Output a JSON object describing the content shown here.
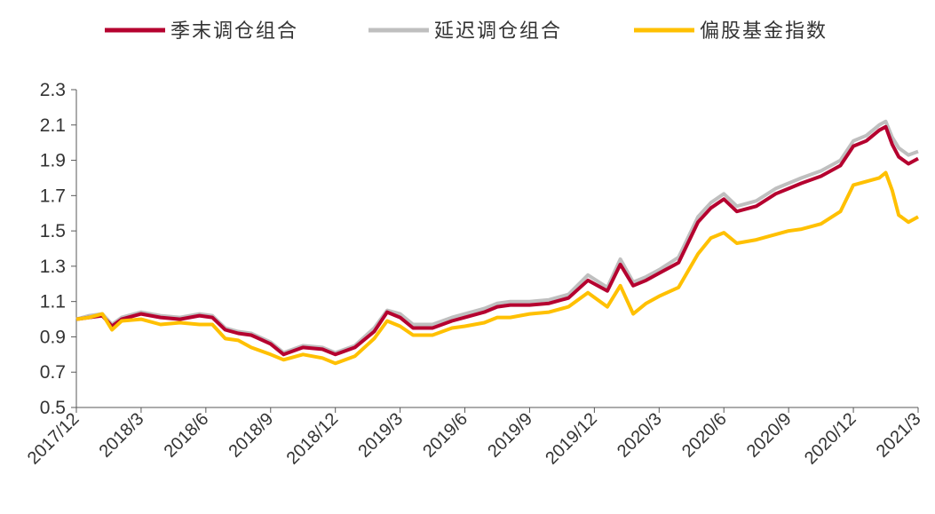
{
  "chart_data": {
    "type": "line",
    "title": "",
    "xlabel": "",
    "ylabel": "",
    "ylim": [
      0.5,
      2.3
    ],
    "yticks": [
      "0.5",
      "0.7",
      "0.9",
      "1.1",
      "1.3",
      "1.5",
      "1.7",
      "1.9",
      "2.1",
      "2.3"
    ],
    "xticks": [
      "2017/12",
      "2018/3",
      "2018/6",
      "2018/9",
      "2018/12",
      "2019/3",
      "2019/6",
      "2019/9",
      "2019/12",
      "2020/3",
      "2020/6",
      "2020/9",
      "2020/12",
      "2021/3"
    ],
    "x_range": [
      0,
      13
    ],
    "legend_position": "top",
    "series": [
      {
        "name": "延迟调仓组合",
        "color": "#bfbfbf",
        "x": [
          0,
          0.2,
          0.4,
          0.55,
          0.7,
          1.0,
          1.3,
          1.6,
          1.9,
          2.1,
          2.3,
          2.5,
          2.7,
          3.0,
          3.2,
          3.5,
          3.8,
          4.0,
          4.3,
          4.6,
          4.8,
          5.0,
          5.2,
          5.5,
          5.8,
          6.0,
          6.3,
          6.5,
          6.7,
          7.0,
          7.3,
          7.6,
          7.9,
          8.2,
          8.4,
          8.6,
          8.8,
          9.0,
          9.3,
          9.6,
          9.8,
          10.0,
          10.2,
          10.5,
          10.8,
          11.0,
          11.2,
          11.5,
          11.8,
          12.0,
          12.2,
          12.4,
          12.5,
          12.6,
          12.7,
          12.85,
          13.0
        ],
        "values": [
          1.0,
          1.02,
          1.03,
          0.97,
          1.01,
          1.04,
          1.02,
          1.01,
          1.03,
          1.02,
          0.95,
          0.93,
          0.92,
          0.87,
          0.81,
          0.85,
          0.84,
          0.81,
          0.85,
          0.95,
          1.05,
          1.03,
          0.97,
          0.97,
          1.01,
          1.03,
          1.06,
          1.09,
          1.1,
          1.1,
          1.11,
          1.14,
          1.25,
          1.18,
          1.34,
          1.21,
          1.24,
          1.28,
          1.35,
          1.58,
          1.66,
          1.71,
          1.64,
          1.67,
          1.74,
          1.77,
          1.8,
          1.84,
          1.9,
          2.01,
          2.04,
          2.1,
          2.12,
          2.03,
          1.97,
          1.93,
          1.95
        ]
      },
      {
        "name": "季末调仓组合",
        "color": "#b5002f",
        "x": [
          0,
          0.2,
          0.4,
          0.55,
          0.7,
          1.0,
          1.3,
          1.6,
          1.9,
          2.1,
          2.3,
          2.5,
          2.7,
          3.0,
          3.2,
          3.5,
          3.8,
          4.0,
          4.3,
          4.6,
          4.8,
          5.0,
          5.2,
          5.5,
          5.8,
          6.0,
          6.3,
          6.5,
          6.7,
          7.0,
          7.3,
          7.6,
          7.9,
          8.2,
          8.4,
          8.6,
          8.8,
          9.0,
          9.3,
          9.6,
          9.8,
          10.0,
          10.2,
          10.5,
          10.8,
          11.0,
          11.2,
          11.5,
          11.8,
          12.0,
          12.2,
          12.4,
          12.5,
          12.6,
          12.7,
          12.85,
          13.0
        ],
        "values": [
          1.0,
          1.01,
          1.02,
          0.96,
          1.0,
          1.03,
          1.01,
          1.0,
          1.02,
          1.01,
          0.94,
          0.92,
          0.91,
          0.86,
          0.8,
          0.84,
          0.83,
          0.8,
          0.84,
          0.93,
          1.04,
          1.01,
          0.95,
          0.95,
          0.99,
          1.01,
          1.04,
          1.07,
          1.08,
          1.08,
          1.09,
          1.12,
          1.22,
          1.16,
          1.31,
          1.19,
          1.22,
          1.26,
          1.32,
          1.55,
          1.63,
          1.68,
          1.61,
          1.64,
          1.71,
          1.74,
          1.77,
          1.81,
          1.87,
          1.98,
          2.01,
          2.07,
          2.09,
          1.99,
          1.92,
          1.88,
          1.91
        ]
      },
      {
        "name": "偏股基金指数",
        "color": "#ffc000",
        "x": [
          0,
          0.2,
          0.4,
          0.55,
          0.7,
          1.0,
          1.3,
          1.6,
          1.9,
          2.1,
          2.3,
          2.5,
          2.7,
          3.0,
          3.2,
          3.5,
          3.8,
          4.0,
          4.3,
          4.6,
          4.8,
          5.0,
          5.2,
          5.5,
          5.8,
          6.0,
          6.3,
          6.5,
          6.7,
          7.0,
          7.3,
          7.6,
          7.9,
          8.2,
          8.4,
          8.6,
          8.8,
          9.0,
          9.3,
          9.6,
          9.8,
          10.0,
          10.2,
          10.5,
          10.8,
          11.0,
          11.2,
          11.5,
          11.8,
          12.0,
          12.2,
          12.4,
          12.5,
          12.6,
          12.7,
          12.85,
          13.0
        ],
        "values": [
          1.0,
          1.01,
          1.03,
          0.94,
          0.99,
          1.0,
          0.97,
          0.98,
          0.97,
          0.97,
          0.89,
          0.88,
          0.84,
          0.8,
          0.77,
          0.8,
          0.78,
          0.75,
          0.79,
          0.89,
          0.99,
          0.96,
          0.91,
          0.91,
          0.95,
          0.96,
          0.98,
          1.01,
          1.01,
          1.03,
          1.04,
          1.07,
          1.15,
          1.07,
          1.19,
          1.03,
          1.09,
          1.13,
          1.18,
          1.37,
          1.46,
          1.49,
          1.43,
          1.45,
          1.48,
          1.5,
          1.51,
          1.54,
          1.61,
          1.76,
          1.78,
          1.8,
          1.83,
          1.73,
          1.59,
          1.55,
          1.58
        ]
      }
    ]
  }
}
